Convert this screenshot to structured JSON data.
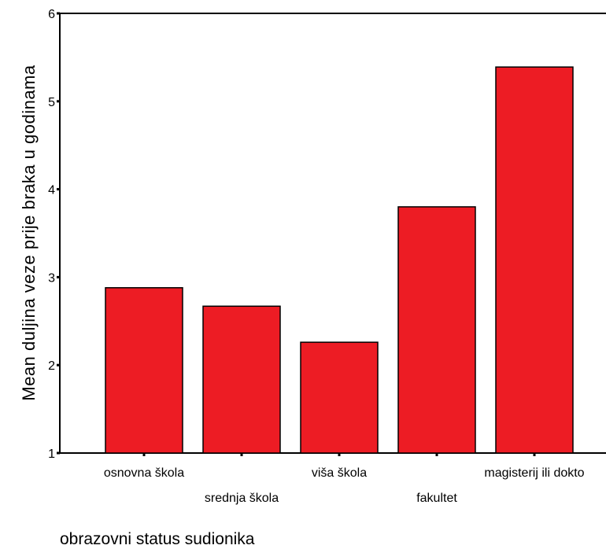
{
  "chart_data": {
    "type": "bar",
    "categories": [
      "osnovna škola",
      "srednja škola",
      "viša škola",
      "fakultet",
      "magisterij ili dokto"
    ],
    "values": [
      2.88,
      2.67,
      2.26,
      3.8,
      5.39
    ],
    "title": "",
    "xlabel": "obrazovni status sudionika",
    "ylabel": "Mean duljina veze prije braka u godinama",
    "ylim": [
      1,
      6
    ],
    "yticks": [
      1,
      2,
      3,
      4,
      5,
      6
    ],
    "grid": false,
    "bar_color": "#ed1c24",
    "bar_edge_color": "#000000"
  }
}
